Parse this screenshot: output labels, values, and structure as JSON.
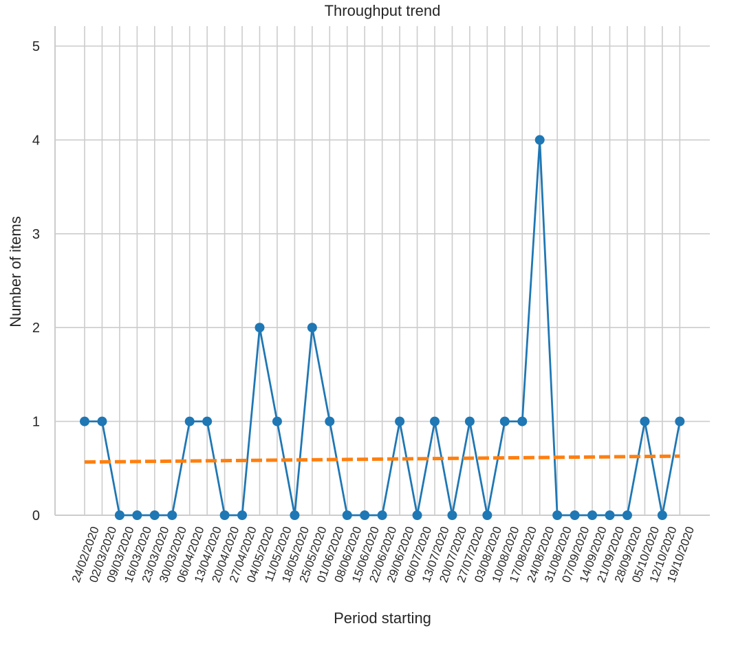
{
  "chart_data": {
    "type": "line",
    "title": "Throughput trend",
    "xlabel": "Period starting",
    "ylabel": "Number of items",
    "ylim": [
      0,
      5.2
    ],
    "yticks": [
      0,
      1,
      2,
      3,
      4,
      5
    ],
    "grid": true,
    "categories": [
      "24/02/2020",
      "02/03/2020",
      "09/03/2020",
      "16/03/2020",
      "23/03/2020",
      "30/03/2020",
      "06/04/2020",
      "13/04/2020",
      "20/04/2020",
      "27/04/2020",
      "04/05/2020",
      "11/05/2020",
      "18/05/2020",
      "25/05/2020",
      "01/06/2020",
      "08/06/2020",
      "15/06/2020",
      "22/06/2020",
      "29/06/2020",
      "06/07/2020",
      "13/07/2020",
      "20/07/2020",
      "27/07/2020",
      "03/08/2020",
      "10/08/2020",
      "17/08/2020",
      "24/08/2020",
      "31/08/2020",
      "07/09/2020",
      "14/09/2020",
      "21/09/2020",
      "28/09/2020",
      "05/10/2020",
      "12/10/2020",
      "19/10/2020"
    ],
    "series": [
      {
        "color": "#1f77b4",
        "style": "solid-markers",
        "values": [
          1,
          1,
          0,
          0,
          0,
          0,
          1,
          1,
          0,
          0,
          2,
          1,
          0,
          2,
          1,
          0,
          0,
          0,
          1,
          0,
          1,
          0,
          1,
          0,
          1,
          1,
          4,
          0,
          0,
          0,
          0,
          0,
          1,
          0,
          1
        ]
      },
      {
        "color": "#ff7f0e",
        "style": "dashed",
        "trend": [
          0.567,
          0.63
        ]
      }
    ]
  }
}
